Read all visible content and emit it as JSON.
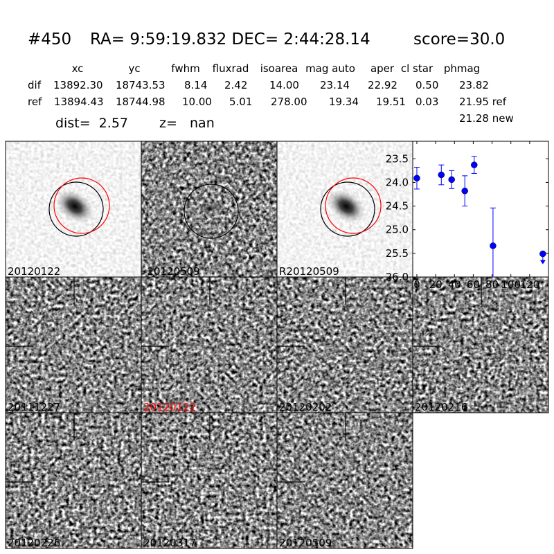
{
  "header": {
    "id": "#450",
    "coords": "RA= 9:59:19.832 DEC= 2:44:28.14",
    "score": "score=30.0"
  },
  "table": {
    "columns": [
      "xc",
      "yc",
      "fwhm",
      "fluxrad",
      "isoarea",
      "mag auto",
      "aper",
      "cl star",
      "phmag"
    ],
    "rows": [
      [
        "dif",
        "13892.30",
        "18743.53",
        "8.14",
        "2.42",
        "14.00",
        "23.14",
        "22.92",
        "0.50",
        "23.82"
      ],
      [
        "ref",
        "13894.43",
        "18744.98",
        "10.00",
        "5.01",
        "278.00",
        "19.34",
        "19.51",
        "0.03",
        "21.95 ref"
      ]
    ],
    "extra": "21.28 new"
  },
  "dist": "dist=  2.57",
  "z": "z=   nan",
  "stamps": [
    {
      "label": "20120122",
      "color": "#000000"
    },
    {
      "label": "-20120509",
      "color": "#000000"
    },
    {
      "label": "R20120509",
      "color": "#000000"
    },
    {
      "label": "20111227",
      "color": "#000000"
    },
    {
      "label": "20120122",
      "color": "#ff0000"
    },
    {
      "label": "20120202",
      "color": "#000000"
    },
    {
      "label": "20120216",
      "color": "#000000"
    },
    {
      "label": "20120226",
      "color": "#000000"
    },
    {
      "label": "20120317",
      "color": "#000000"
    },
    {
      "label": "20120509",
      "color": "#000000"
    }
  ],
  "chart_data": {
    "type": "errorbar",
    "x": [
      0,
      26,
      37,
      51,
      61,
      81,
      134
    ],
    "series": [
      {
        "color": "#0000ff",
        "values": [
          23.91,
          23.84,
          23.94,
          24.18,
          23.63,
          25.34,
          25.51
        ],
        "errors": [
          0.23,
          0.21,
          0.19,
          0.32,
          0.18,
          0.8,
          null
        ],
        "upper_limits": [
          false,
          false,
          false,
          false,
          false,
          false,
          true
        ]
      }
    ],
    "xlim": [
      -4.4,
      140
    ],
    "ylim": [
      26.0,
      23.13
    ],
    "xticks": [
      0,
      20,
      40,
      60,
      80,
      100,
      120
    ],
    "yticks": [
      23.5,
      {
        "value": 24.0,
        "label": "24.0"
      },
      24.5,
      {
        "value": 25.0,
        "label": "25.0"
      },
      25.5,
      {
        "value": 26.0,
        "label": "26.0"
      }
    ]
  }
}
